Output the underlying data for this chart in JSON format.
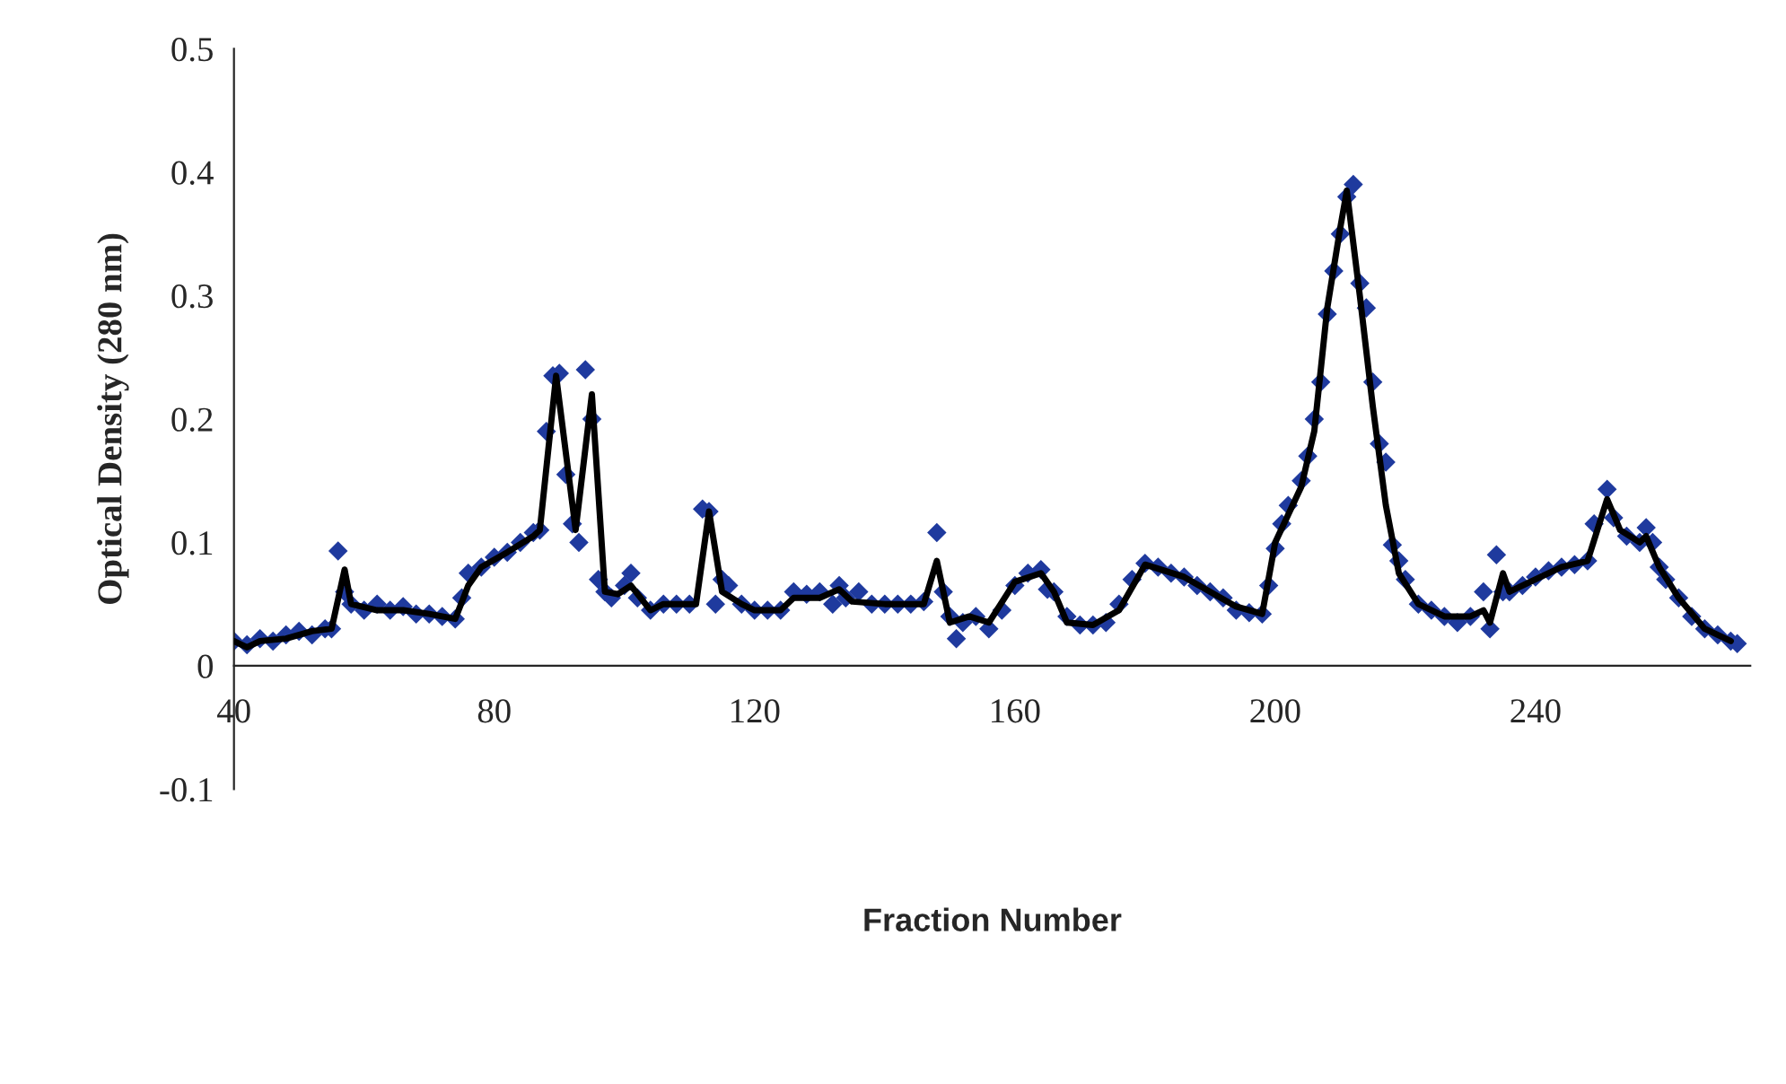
{
  "chart_data": {
    "type": "scatter",
    "xlabel": "Fraction Number",
    "ylabel": "Optical Density (280 nm)",
    "xlim": [
      40,
      273
    ],
    "xticks": [
      40,
      80,
      120,
      160,
      200,
      240
    ],
    "ylim": [
      -0.1,
      0.5
    ],
    "yticks": [
      -0.1,
      0,
      0.1,
      0.2,
      0.3,
      0.4,
      0.5
    ],
    "grid": false,
    "legend": false,
    "series": [
      {
        "color": "#1f3a9e",
        "marker": "diamond",
        "x": [
          40,
          42,
          44,
          46,
          48,
          50,
          52,
          54,
          55,
          56,
          57,
          58,
          60,
          62,
          64,
          66,
          68,
          70,
          72,
          74,
          75,
          76,
          78,
          80,
          82,
          84,
          86,
          87,
          88,
          89,
          90,
          91,
          92,
          93,
          94,
          95,
          96,
          97,
          98,
          100,
          101,
          102,
          104,
          106,
          108,
          110,
          112,
          113,
          114,
          115,
          116,
          118,
          120,
          122,
          124,
          126,
          128,
          130,
          132,
          133,
          134,
          136,
          138,
          140,
          142,
          144,
          146,
          148,
          149,
          150,
          151,
          152,
          154,
          156,
          158,
          160,
          162,
          164,
          165,
          166,
          168,
          170,
          172,
          174,
          176,
          178,
          180,
          182,
          184,
          186,
          188,
          190,
          192,
          194,
          196,
          198,
          199,
          200,
          201,
          202,
          204,
          205,
          206,
          207,
          208,
          209,
          210,
          211,
          212,
          213,
          214,
          215,
          216,
          217,
          218,
          219,
          220,
          222,
          224,
          226,
          228,
          230,
          232,
          233,
          234,
          235,
          236,
          238,
          240,
          242,
          244,
          246,
          248,
          249,
          251,
          252,
          254,
          256,
          257,
          258,
          259,
          260,
          262,
          264,
          266,
          268,
          270,
          271
        ],
        "values": [
          0.02,
          0.017,
          0.022,
          0.02,
          0.025,
          0.028,
          0.025,
          0.03,
          0.03,
          0.093,
          0.06,
          0.05,
          0.045,
          0.05,
          0.045,
          0.048,
          0.042,
          0.042,
          0.04,
          0.038,
          0.055,
          0.075,
          0.08,
          0.088,
          0.092,
          0.1,
          0.108,
          0.11,
          0.19,
          0.235,
          0.237,
          0.155,
          0.115,
          0.1,
          0.24,
          0.2,
          0.07,
          0.06,
          0.055,
          0.065,
          0.075,
          0.055,
          0.045,
          0.05,
          0.05,
          0.05,
          0.127,
          0.125,
          0.05,
          0.07,
          0.065,
          0.05,
          0.045,
          0.045,
          0.045,
          0.06,
          0.058,
          0.06,
          0.05,
          0.065,
          0.055,
          0.06,
          0.05,
          0.05,
          0.05,
          0.05,
          0.052,
          0.108,
          0.06,
          0.04,
          0.022,
          0.035,
          0.04,
          0.03,
          0.045,
          0.065,
          0.075,
          0.078,
          0.062,
          0.06,
          0.04,
          0.033,
          0.033,
          0.035,
          0.05,
          0.07,
          0.083,
          0.08,
          0.075,
          0.072,
          0.065,
          0.06,
          0.055,
          0.045,
          0.043,
          0.042,
          0.065,
          0.095,
          0.115,
          0.13,
          0.15,
          0.17,
          0.2,
          0.23,
          0.285,
          0.32,
          0.35,
          0.38,
          0.39,
          0.31,
          0.29,
          0.23,
          0.18,
          0.165,
          0.098,
          0.085,
          0.07,
          0.05,
          0.045,
          0.04,
          0.035,
          0.04,
          0.06,
          0.03,
          0.09,
          0.06,
          0.06,
          0.065,
          0.072,
          0.077,
          0.08,
          0.082,
          0.085,
          0.115,
          0.143,
          0.12,
          0.105,
          0.1,
          0.112,
          0.1,
          0.08,
          0.07,
          0.055,
          0.04,
          0.03,
          0.025,
          0.02,
          0.018
        ]
      },
      {
        "type": "line",
        "color": "#000000",
        "marker": "none",
        "line_style": "solid",
        "x": [
          40,
          42,
          44,
          48,
          52,
          55,
          57,
          58,
          62,
          66,
          70,
          74,
          76,
          78,
          82,
          86,
          87,
          89.5,
          92.5,
          95,
          97,
          99,
          101,
          104,
          106,
          111,
          113,
          115,
          118,
          120,
          124,
          126,
          130,
          133,
          135,
          140,
          146,
          148,
          150,
          153,
          156,
          160,
          164,
          166,
          168,
          172,
          176,
          180,
          186,
          190,
          194,
          198,
          200,
          204,
          206,
          208,
          210,
          211,
          213,
          215,
          217,
          219,
          222,
          226,
          230,
          232,
          233,
          235,
          236,
          240,
          244,
          248,
          251,
          253,
          256,
          257,
          259,
          262,
          266,
          270
        ],
        "values": [
          0.02,
          0.015,
          0.02,
          0.022,
          0.028,
          0.03,
          0.078,
          0.05,
          0.045,
          0.045,
          0.042,
          0.038,
          0.065,
          0.08,
          0.092,
          0.105,
          0.11,
          0.235,
          0.11,
          0.22,
          0.06,
          0.058,
          0.065,
          0.045,
          0.05,
          0.05,
          0.125,
          0.06,
          0.05,
          0.045,
          0.045,
          0.055,
          0.055,
          0.062,
          0.052,
          0.05,
          0.05,
          0.085,
          0.035,
          0.04,
          0.035,
          0.068,
          0.075,
          0.06,
          0.035,
          0.033,
          0.045,
          0.082,
          0.072,
          0.06,
          0.048,
          0.042,
          0.1,
          0.145,
          0.19,
          0.29,
          0.355,
          0.385,
          0.3,
          0.21,
          0.13,
          0.075,
          0.05,
          0.04,
          0.04,
          0.045,
          0.035,
          0.075,
          0.06,
          0.07,
          0.08,
          0.085,
          0.135,
          0.11,
          0.1,
          0.105,
          0.08,
          0.055,
          0.03,
          0.02
        ]
      }
    ]
  }
}
